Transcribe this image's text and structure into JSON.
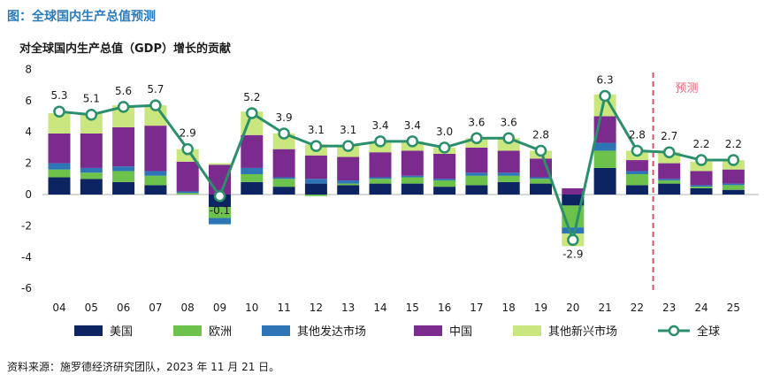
{
  "page": {
    "figure_title": "图：全球国内生产总值预测",
    "source_note": "资料来源：施罗德经济研究团队，2023 年 11 月 21 日。"
  },
  "chart_data": {
    "type": "bar",
    "stacked": true,
    "title": "对全球国内生产总值（GDP）增长的贡献",
    "xlabel": "",
    "ylabel": "",
    "ylim": [
      -6,
      8
    ],
    "yticks": [
      8,
      6,
      4,
      2,
      0,
      -2,
      -4,
      -6
    ],
    "categories": [
      "04",
      "05",
      "06",
      "07",
      "08",
      "09",
      "10",
      "11",
      "12",
      "13",
      "14",
      "15",
      "16",
      "17",
      "18",
      "19",
      "20",
      "21",
      "22",
      "23",
      "24",
      "25"
    ],
    "forecast_start": "23",
    "forecast_label": "预测",
    "series": [
      {
        "name": "美国",
        "color": "#0c2461",
        "values": [
          1.1,
          1.0,
          0.8,
          0.6,
          0.0,
          -0.8,
          0.8,
          0.5,
          0.7,
          0.6,
          0.7,
          0.7,
          0.5,
          0.6,
          0.8,
          0.7,
          -0.7,
          1.7,
          0.6,
          0.7,
          0.4,
          0.3
        ]
      },
      {
        "name": "欧洲",
        "color": "#6cc24a",
        "values": [
          0.5,
          0.4,
          0.7,
          0.6,
          0.1,
          -0.7,
          0.5,
          0.5,
          -0.1,
          0.1,
          0.3,
          0.4,
          0.4,
          0.6,
          0.4,
          0.3,
          -1.4,
          1.1,
          0.7,
          0.2,
          0.1,
          0.3
        ]
      },
      {
        "name": "其他发达市场",
        "color": "#2e75b6",
        "values": [
          0.4,
          0.3,
          0.3,
          0.3,
          0.1,
          -0.4,
          0.4,
          0.1,
          0.3,
          0.2,
          0.1,
          0.1,
          0.1,
          0.2,
          0.2,
          0.1,
          -0.4,
          0.5,
          0.2,
          0.1,
          0.1,
          0.1
        ]
      },
      {
        "name": "中国",
        "color": "#7b2a8e",
        "values": [
          1.9,
          2.2,
          2.5,
          2.9,
          1.9,
          1.9,
          2.1,
          1.8,
          1.5,
          1.5,
          1.6,
          1.6,
          1.6,
          1.6,
          1.4,
          1.2,
          0.4,
          1.7,
          0.7,
          1.0,
          0.9,
          0.9
        ]
      },
      {
        "name": "其他新兴市场",
        "color": "#c9e67f",
        "values": [
          1.3,
          1.3,
          1.4,
          1.3,
          0.8,
          0.1,
          1.5,
          1.0,
          0.7,
          0.7,
          0.7,
          0.6,
          0.4,
          0.6,
          0.8,
          0.5,
          -0.8,
          1.4,
          0.6,
          0.7,
          0.6,
          0.6
        ]
      }
    ],
    "total": {
      "name": "全球",
      "color": "#2a8f6a",
      "values": [
        5.3,
        5.1,
        5.6,
        5.7,
        2.9,
        -0.1,
        5.2,
        3.9,
        3.1,
        3.1,
        3.4,
        3.4,
        3.0,
        3.6,
        3.6,
        2.8,
        -2.9,
        6.3,
        2.8,
        2.7,
        2.2,
        2.2
      ],
      "labels": [
        "5.3",
        "5.1",
        "5.6",
        "5.7",
        "2.9",
        "-0.1",
        "5.2",
        "3.9",
        "3.1",
        "3.1",
        "3.4",
        "3.4",
        "3.0",
        "3.6",
        "3.6",
        "2.8",
        "-2.9",
        "6.3",
        "2.8",
        "2.7",
        "2.2",
        "2.2"
      ]
    },
    "legend": {
      "position": "bottom"
    }
  }
}
